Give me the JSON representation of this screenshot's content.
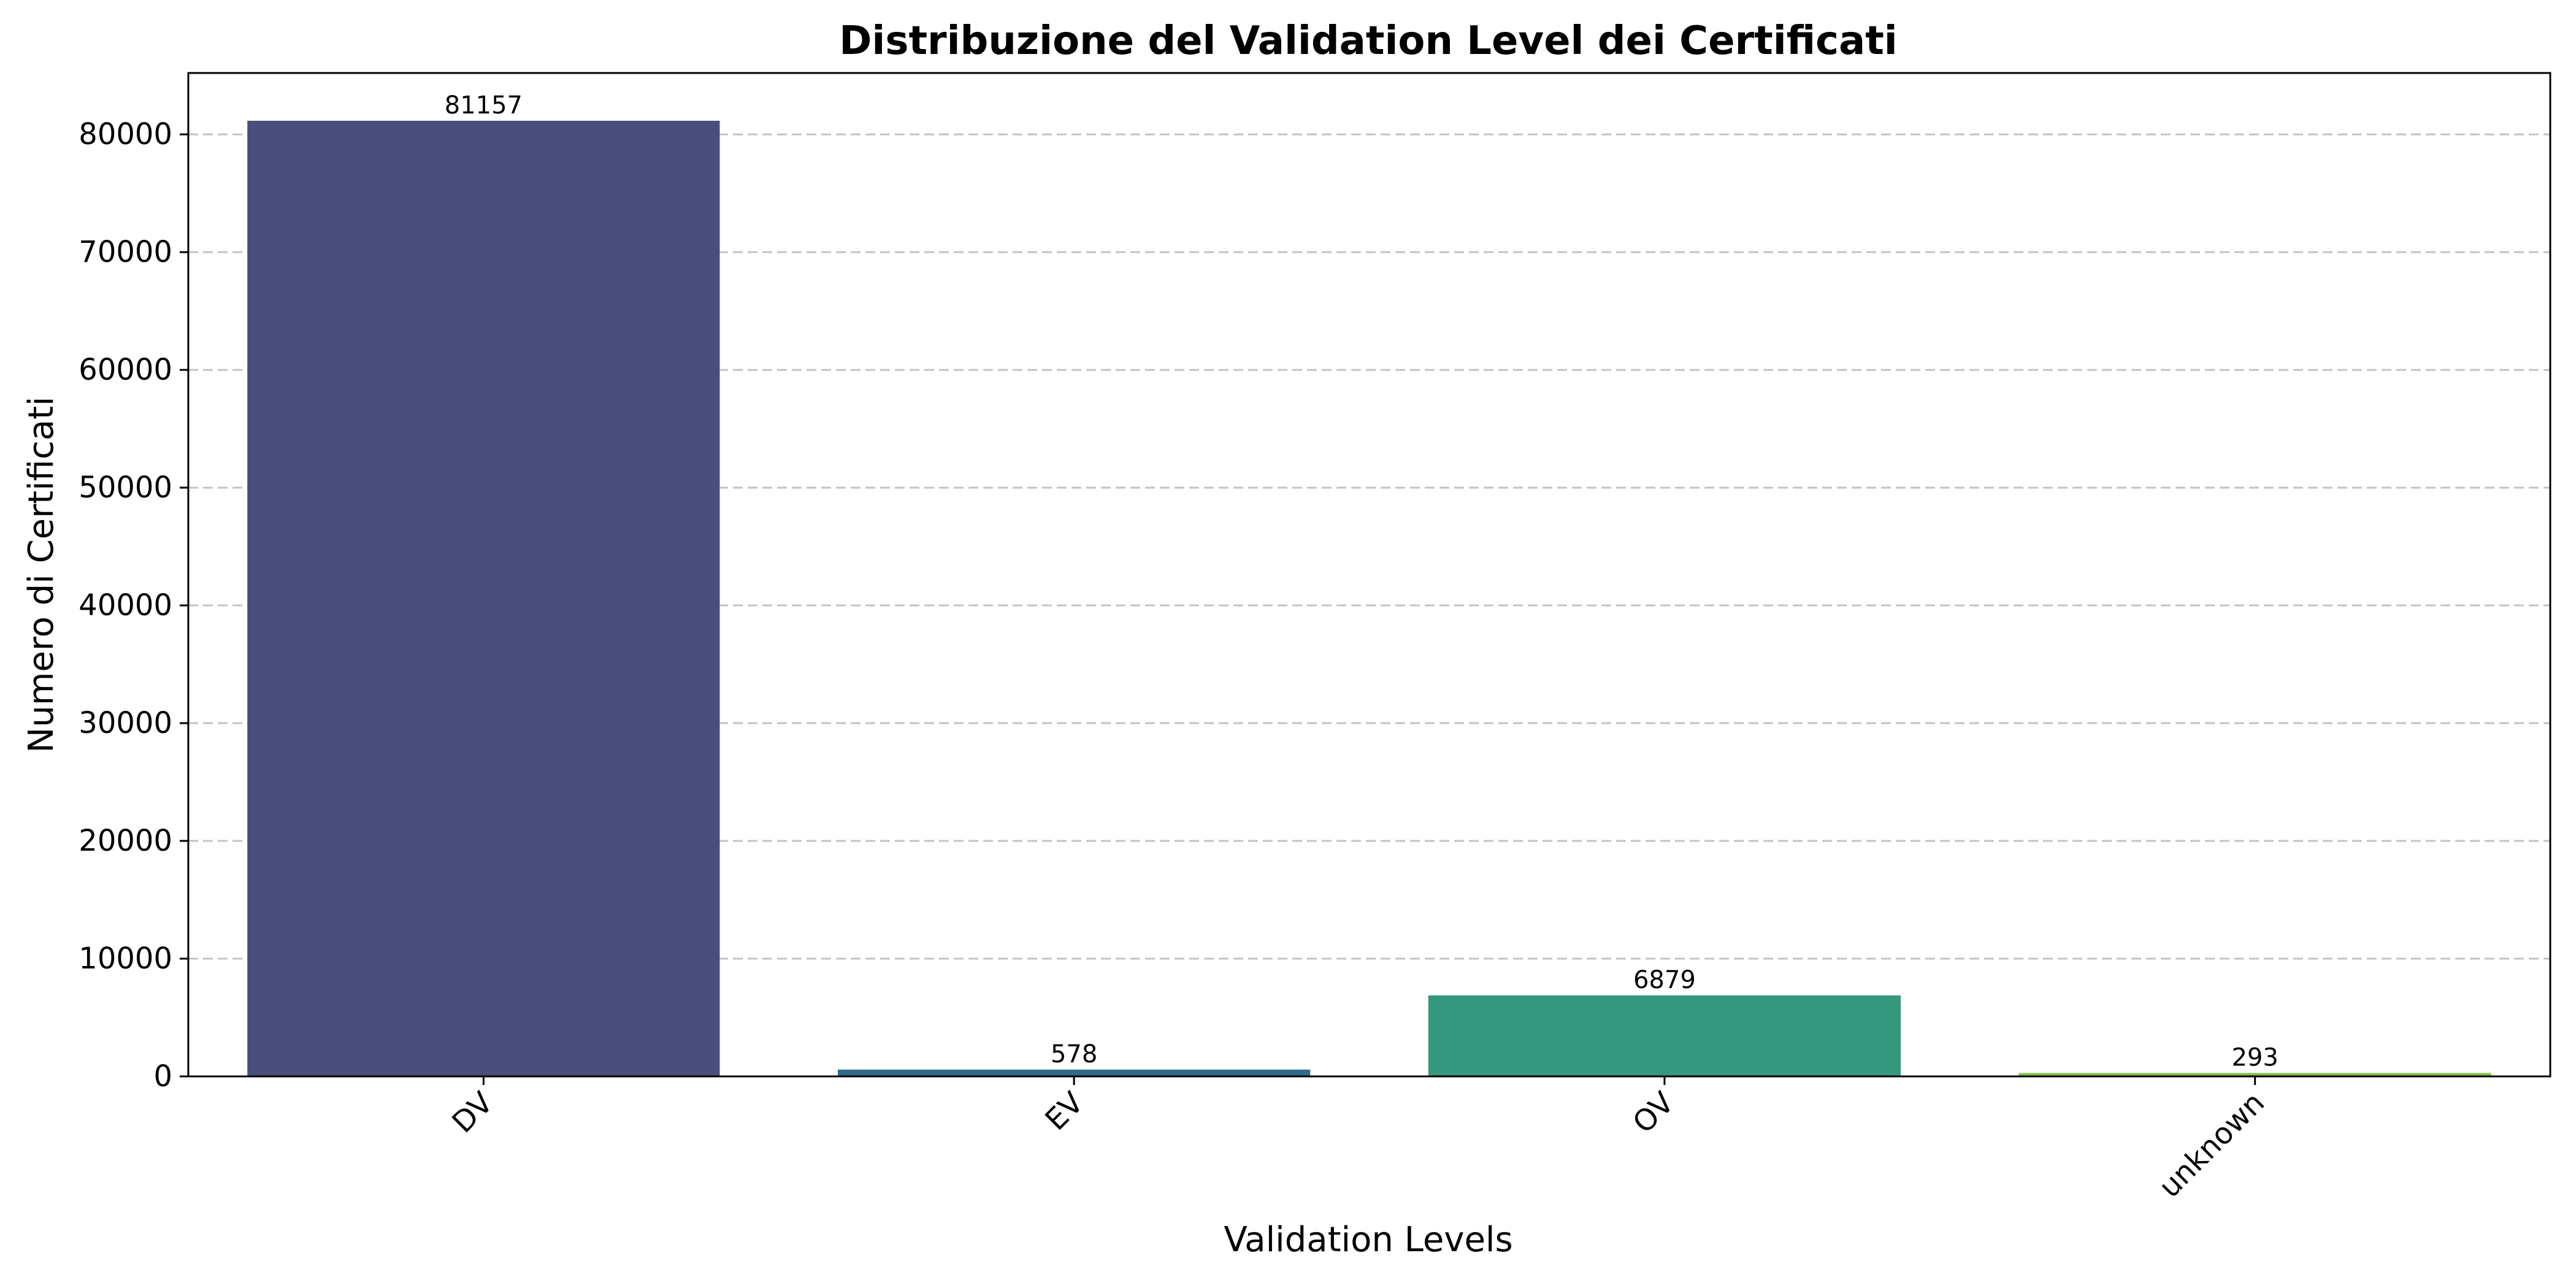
{
  "chart_data": {
    "type": "bar",
    "title": "Distribuzione del Validation Level dei Certificati",
    "xlabel": "Validation Levels",
    "ylabel": "Numero di Certificati",
    "categories": [
      "DV",
      "EV",
      "OV",
      "unknown"
    ],
    "values": [
      81157,
      578,
      6879,
      293
    ],
    "data_labels": [
      "81157",
      "578",
      "6879",
      "293"
    ],
    "colors": [
      "#4a4e7c",
      "#2f6b8a",
      "#35987c",
      "#86c34a"
    ],
    "ylim": [
      0,
      85214
    ],
    "yticks": [
      0,
      10000,
      20000,
      30000,
      40000,
      50000,
      60000,
      70000,
      80000
    ],
    "ytick_labels": [
      "0",
      "10000",
      "20000",
      "30000",
      "40000",
      "50000",
      "60000",
      "70000",
      "80000"
    ],
    "grid": "y-dashed",
    "xtick_rotation": "45"
  }
}
